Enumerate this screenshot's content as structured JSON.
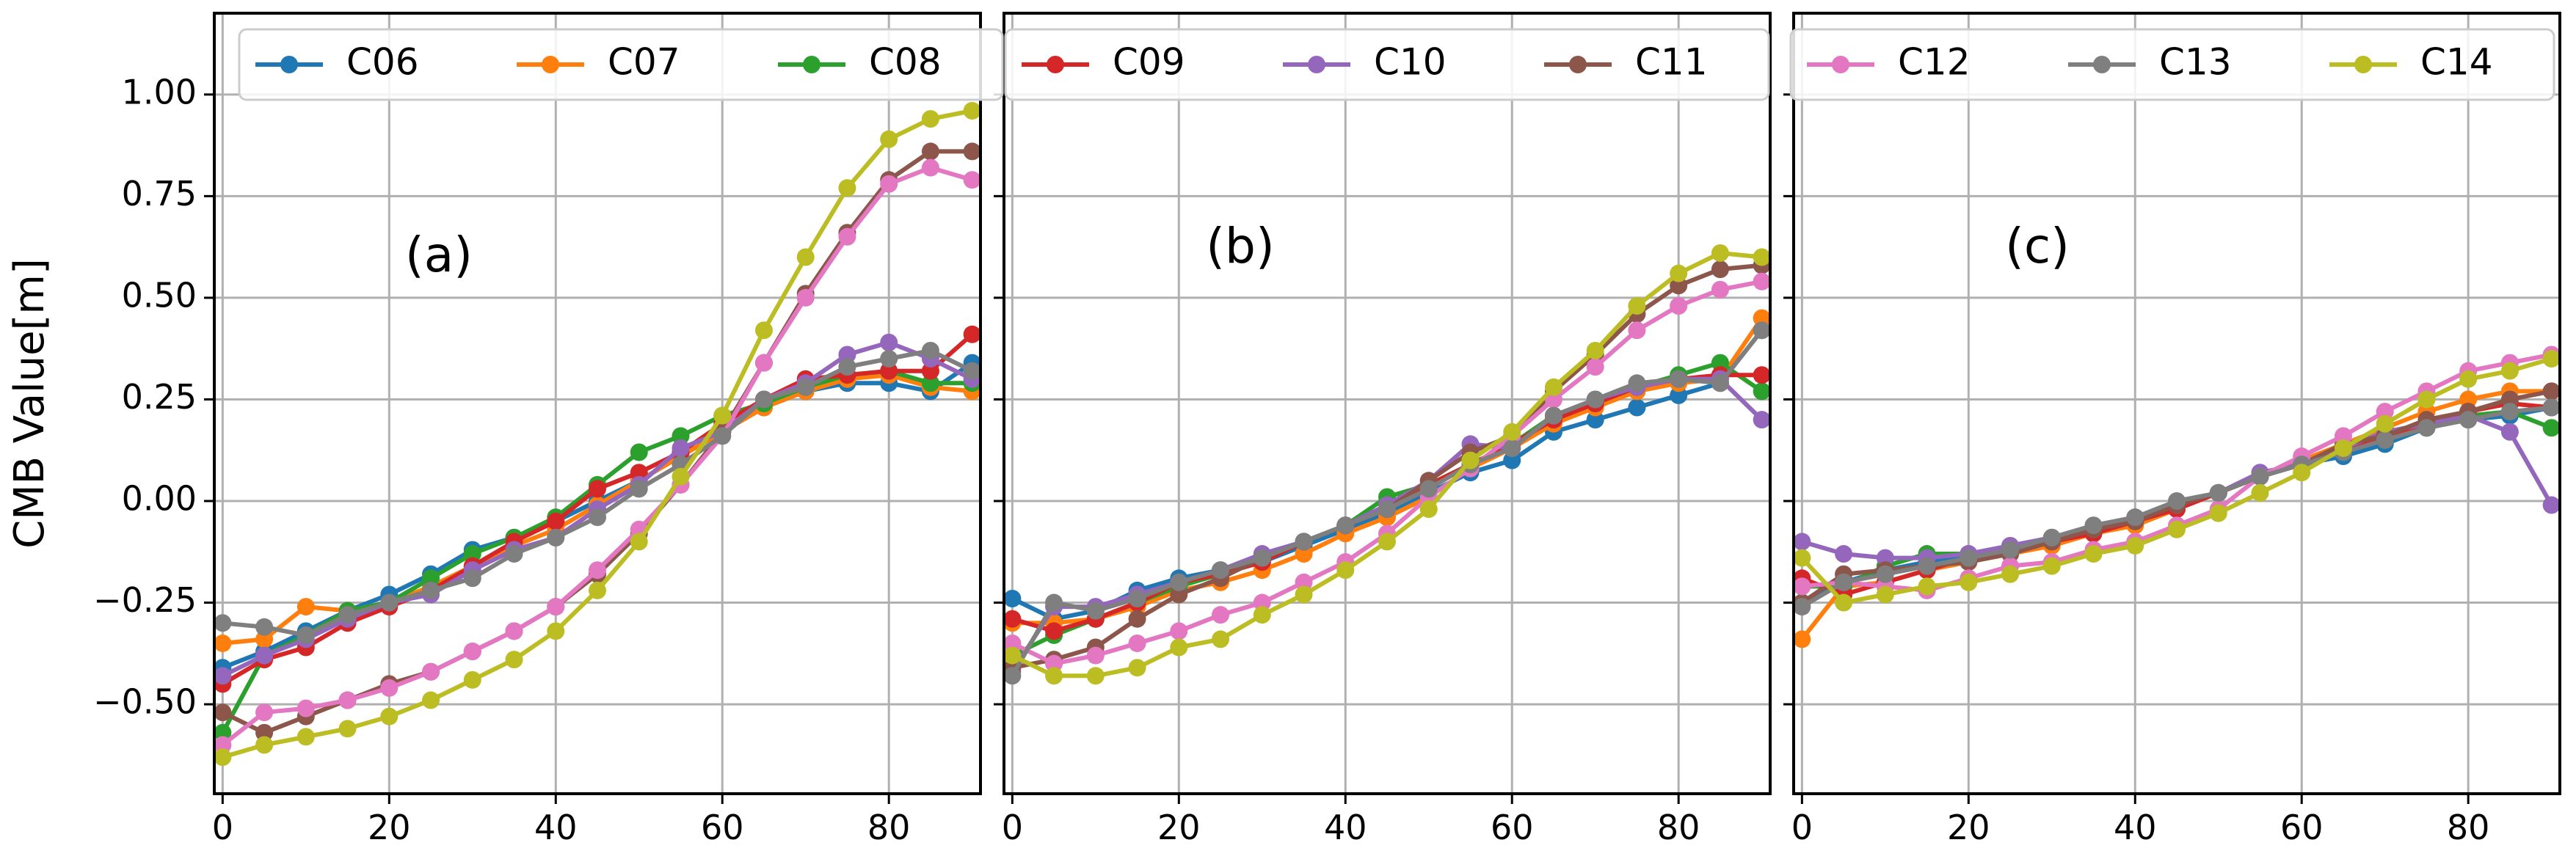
{
  "chart_data": {
    "type": "line",
    "ylabel": "CMB Value[m]",
    "ylim": [
      -0.72,
      1.2
    ],
    "xlim": [
      -1,
      91
    ],
    "yticks": [
      -0.5,
      -0.25,
      0.0,
      0.25,
      0.5,
      0.75,
      1.0
    ],
    "ytick_labels": [
      "−0.50",
      "−0.25",
      "0.00",
      "0.25",
      "0.50",
      "0.75",
      "1.00"
    ],
    "xticks": [
      0,
      20,
      40,
      60,
      80
    ],
    "xtick_labels": [
      "0",
      "20",
      "40",
      "60",
      "80"
    ],
    "grid": true,
    "x": [
      0,
      5,
      10,
      15,
      20,
      25,
      30,
      35,
      40,
      45,
      50,
      55,
      60,
      65,
      70,
      75,
      80,
      85,
      90
    ],
    "panels": [
      {
        "label": "(a)",
        "legend": "top",
        "series": [
          {
            "name": "C06",
            "color": "#1f77b4",
            "values": [
              -0.41,
              -0.37,
              -0.32,
              -0.27,
              -0.23,
              -0.18,
              -0.12,
              -0.09,
              -0.05,
              0.0,
              0.05,
              0.11,
              0.17,
              0.23,
              0.27,
              0.29,
              0.29,
              0.27,
              0.34
            ]
          },
          {
            "name": "C07",
            "color": "#ff7f0e",
            "values": [
              -0.35,
              -0.34,
              -0.26,
              -0.27,
              -0.25,
              -0.21,
              -0.16,
              -0.11,
              -0.07,
              -0.01,
              0.05,
              0.11,
              0.17,
              0.23,
              0.27,
              0.3,
              0.31,
              0.28,
              0.27
            ]
          },
          {
            "name": "C08",
            "color": "#2ca02c",
            "values": [
              -0.57,
              -0.38,
              -0.33,
              -0.27,
              -0.25,
              -0.19,
              -0.13,
              -0.09,
              -0.04,
              0.04,
              0.12,
              0.16,
              0.21,
              0.24,
              0.28,
              0.31,
              0.32,
              0.29,
              0.29
            ]
          },
          {
            "name": "C09",
            "color": "#d62728",
            "values": [
              -0.45,
              -0.39,
              -0.36,
              -0.3,
              -0.26,
              -0.22,
              -0.16,
              -0.1,
              -0.05,
              0.03,
              0.07,
              0.12,
              0.19,
              0.25,
              0.3,
              0.31,
              0.32,
              0.32,
              0.41
            ]
          },
          {
            "name": "C10",
            "color": "#9467bd",
            "values": [
              -0.43,
              -0.38,
              -0.34,
              -0.29,
              -0.25,
              -0.23,
              -0.17,
              -0.12,
              -0.09,
              -0.02,
              0.04,
              0.13,
              0.17,
              0.25,
              0.29,
              0.36,
              0.39,
              0.35,
              0.3
            ]
          },
          {
            "name": "C11",
            "color": "#8c564b",
            "values": [
              -0.52,
              -0.57,
              -0.53,
              -0.49,
              -0.45,
              -0.42,
              -0.37,
              -0.32,
              -0.26,
              -0.18,
              -0.08,
              0.04,
              0.17,
              0.34,
              0.51,
              0.66,
              0.79,
              0.86,
              0.86
            ]
          },
          {
            "name": "C12",
            "color": "#e377c2",
            "values": [
              -0.6,
              -0.52,
              -0.51,
              -0.49,
              -0.46,
              -0.42,
              -0.37,
              -0.32,
              -0.26,
              -0.17,
              -0.07,
              0.04,
              0.16,
              0.34,
              0.5,
              0.65,
              0.78,
              0.82,
              0.79
            ]
          },
          {
            "name": "C13",
            "color": "#7f7f7f",
            "values": [
              -0.3,
              -0.31,
              -0.33,
              -0.28,
              -0.25,
              -0.22,
              -0.19,
              -0.13,
              -0.09,
              -0.04,
              0.03,
              0.09,
              0.16,
              0.25,
              0.28,
              0.33,
              0.35,
              0.37,
              0.32
            ]
          },
          {
            "name": "C14",
            "color": "#bcbd22",
            "values": [
              -0.63,
              -0.6,
              -0.58,
              -0.56,
              -0.53,
              -0.49,
              -0.44,
              -0.39,
              -0.32,
              -0.22,
              -0.1,
              0.06,
              0.21,
              0.42,
              0.6,
              0.77,
              0.89,
              0.94,
              0.96
            ]
          }
        ]
      },
      {
        "label": "(b)",
        "legend": "top",
        "series": [
          {
            "name": "C06",
            "color": "#1f77b4",
            "values": [
              -0.24,
              -0.29,
              -0.27,
              -0.22,
              -0.19,
              -0.17,
              -0.15,
              -0.11,
              -0.07,
              -0.03,
              0.02,
              0.07,
              0.1,
              0.17,
              0.2,
              0.23,
              0.26,
              0.29,
              0.42
            ]
          },
          {
            "name": "C07",
            "color": "#ff7f0e",
            "values": [
              -0.3,
              -0.3,
              -0.29,
              -0.26,
              -0.22,
              -0.2,
              -0.17,
              -0.13,
              -0.08,
              -0.04,
              0.01,
              0.08,
              0.13,
              0.19,
              0.23,
              0.27,
              0.29,
              0.3,
              0.45
            ]
          },
          {
            "name": "C08",
            "color": "#2ca02c",
            "values": [
              -0.38,
              -0.33,
              -0.29,
              -0.25,
              -0.21,
              -0.18,
              -0.14,
              -0.1,
              -0.06,
              0.01,
              0.04,
              0.09,
              0.14,
              0.21,
              0.24,
              0.28,
              0.31,
              0.34,
              0.27
            ]
          },
          {
            "name": "C09",
            "color": "#d62728",
            "values": [
              -0.29,
              -0.32,
              -0.29,
              -0.25,
              -0.2,
              -0.18,
              -0.15,
              -0.1,
              -0.06,
              -0.02,
              0.04,
              0.09,
              0.14,
              0.2,
              0.24,
              0.28,
              0.3,
              0.31,
              0.31
            ]
          },
          {
            "name": "C10",
            "color": "#9467bd",
            "values": [
              -0.42,
              -0.26,
              -0.26,
              -0.23,
              -0.2,
              -0.17,
              -0.13,
              -0.1,
              -0.06,
              -0.01,
              0.05,
              0.14,
              0.13,
              0.21,
              0.25,
              0.28,
              0.3,
              0.3,
              0.2
            ]
          },
          {
            "name": "C11",
            "color": "#8c564b",
            "values": [
              -0.41,
              -0.39,
              -0.36,
              -0.29,
              -0.23,
              -0.19,
              -0.14,
              -0.1,
              -0.06,
              -0.02,
              0.05,
              0.12,
              0.16,
              0.27,
              0.36,
              0.46,
              0.53,
              0.57,
              0.58
            ]
          },
          {
            "name": "C12",
            "color": "#e377c2",
            "values": [
              -0.35,
              -0.4,
              -0.38,
              -0.35,
              -0.32,
              -0.28,
              -0.25,
              -0.2,
              -0.15,
              -0.08,
              0.01,
              0.08,
              0.16,
              0.25,
              0.33,
              0.42,
              0.48,
              0.52,
              0.54
            ]
          },
          {
            "name": "C13",
            "color": "#7f7f7f",
            "values": [
              -0.43,
              -0.25,
              -0.27,
              -0.24,
              -0.2,
              -0.17,
              -0.14,
              -0.1,
              -0.06,
              -0.02,
              0.03,
              0.09,
              0.13,
              0.21,
              0.25,
              0.29,
              0.3,
              0.29,
              0.42
            ]
          },
          {
            "name": "C14",
            "color": "#bcbd22",
            "values": [
              -0.38,
              -0.43,
              -0.43,
              -0.41,
              -0.36,
              -0.34,
              -0.28,
              -0.23,
              -0.17,
              -0.1,
              -0.02,
              0.1,
              0.17,
              0.28,
              0.37,
              0.48,
              0.56,
              0.61,
              0.6
            ]
          }
        ]
      },
      {
        "label": "(c)",
        "legend": "top",
        "series": [
          {
            "name": "C06",
            "color": "#1f77b4",
            "values": [
              -0.25,
              -0.2,
              -0.17,
              -0.15,
              -0.14,
              -0.12,
              -0.1,
              -0.07,
              -0.05,
              -0.01,
              0.02,
              0.06,
              0.09,
              0.11,
              0.14,
              0.18,
              0.2,
              0.21,
              0.23
            ]
          },
          {
            "name": "C07",
            "color": "#ff7f0e",
            "values": [
              -0.34,
              -0.21,
              -0.2,
              -0.17,
              -0.15,
              -0.13,
              -0.11,
              -0.08,
              -0.06,
              -0.02,
              0.02,
              0.06,
              0.1,
              0.14,
              0.18,
              0.22,
              0.25,
              0.27,
              0.27
            ]
          },
          {
            "name": "C08",
            "color": "#2ca02c",
            "values": [
              -0.21,
              -0.21,
              -0.16,
              -0.13,
              -0.13,
              -0.11,
              -0.09,
              -0.07,
              -0.05,
              -0.01,
              0.02,
              0.06,
              0.09,
              0.13,
              0.15,
              0.18,
              0.21,
              0.22,
              0.18
            ]
          },
          {
            "name": "C09",
            "color": "#d62728",
            "values": [
              -0.19,
              -0.23,
              -0.2,
              -0.17,
              -0.14,
              -0.13,
              -0.1,
              -0.08,
              -0.05,
              -0.02,
              0.02,
              0.06,
              0.09,
              0.13,
              0.16,
              0.19,
              0.22,
              0.24,
              0.23
            ]
          },
          {
            "name": "C10",
            "color": "#9467bd",
            "values": [
              -0.1,
              -0.13,
              -0.14,
              -0.14,
              -0.13,
              -0.11,
              -0.09,
              -0.06,
              -0.04,
              -0.01,
              0.02,
              0.07,
              0.09,
              0.13,
              0.17,
              0.19,
              0.21,
              0.17,
              -0.01
            ]
          },
          {
            "name": "C11",
            "color": "#8c564b",
            "values": [
              -0.25,
              -0.18,
              -0.17,
              -0.16,
              -0.15,
              -0.13,
              -0.1,
              -0.07,
              -0.05,
              -0.01,
              0.02,
              0.06,
              0.09,
              0.14,
              0.16,
              0.2,
              0.22,
              0.25,
              0.27
            ]
          },
          {
            "name": "C12",
            "color": "#e377c2",
            "values": [
              -0.21,
              -0.2,
              -0.21,
              -0.22,
              -0.19,
              -0.16,
              -0.15,
              -0.12,
              -0.1,
              -0.06,
              -0.02,
              0.06,
              0.11,
              0.16,
              0.22,
              0.27,
              0.32,
              0.34,
              0.36
            ]
          },
          {
            "name": "C13",
            "color": "#7f7f7f",
            "values": [
              -0.26,
              -0.2,
              -0.18,
              -0.16,
              -0.14,
              -0.12,
              -0.09,
              -0.06,
              -0.04,
              0.0,
              0.02,
              0.06,
              0.09,
              0.12,
              0.15,
              0.18,
              0.2,
              0.22,
              0.23
            ]
          },
          {
            "name": "C14",
            "color": "#bcbd22",
            "values": [
              -0.14,
              -0.25,
              -0.23,
              -0.21,
              -0.2,
              -0.18,
              -0.16,
              -0.13,
              -0.11,
              -0.07,
              -0.03,
              0.02,
              0.07,
              0.13,
              0.19,
              0.25,
              0.3,
              0.32,
              0.35
            ]
          }
        ]
      }
    ]
  }
}
